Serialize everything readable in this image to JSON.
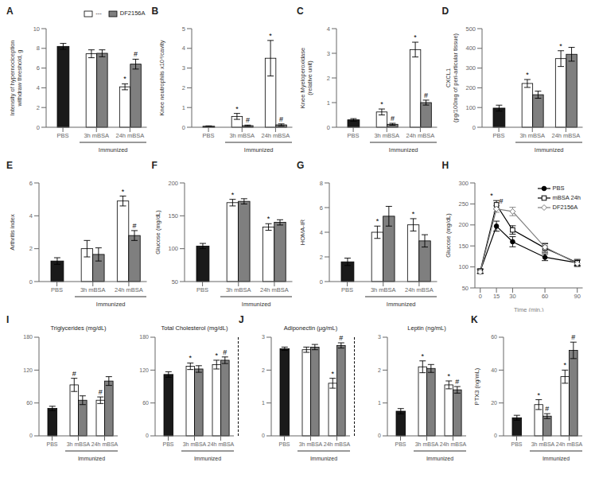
{
  "chart_data": [
    {
      "type": "bar",
      "label": "A",
      "ylabel": "Intensity of hypernociception\nwithdraw threshold, g",
      "categories": [
        "PBS",
        "3h mBSA",
        "24h mBSA"
      ],
      "series": [
        {
          "name": "---",
          "colors": [
            "#1a1a1a",
            "#ffffff",
            "#ffffff"
          ],
          "values": [
            8.2,
            7.45,
            4.1
          ],
          "errors": [
            0.3,
            0.4,
            0.3
          ],
          "annotations": [
            null,
            null,
            "*"
          ]
        },
        {
          "name": "DF2156A",
          "color": "#7f7f7f",
          "values": [
            null,
            7.5,
            6.4
          ],
          "errors": [
            null,
            0.35,
            0.5
          ],
          "annotations": [
            null,
            null,
            "#"
          ]
        }
      ],
      "ylim": [
        0,
        10
      ],
      "yticks": [
        0,
        2,
        4,
        6,
        8,
        10
      ],
      "legend": "upper right",
      "annotation": "Immunized"
    },
    {
      "type": "bar",
      "label": "B",
      "ylabel": "Knee neutrophils x10⁴/cavity",
      "categories": [
        "PBS",
        "3h mBSA",
        "24h mBSA"
      ],
      "series": [
        {
          "colors": [
            "#1a1a1a",
            "#ffffff",
            "#ffffff"
          ],
          "values": [
            0.05,
            0.55,
            3.5
          ],
          "errors": [
            0.02,
            0.15,
            0.9
          ],
          "annotations": [
            null,
            "*",
            "*"
          ]
        },
        {
          "color": "#7f7f7f",
          "values": [
            null,
            0.08,
            0.12
          ],
          "errors": [
            null,
            0.03,
            0.05
          ],
          "annotations": [
            null,
            "#",
            "#"
          ]
        }
      ],
      "ylim": [
        0,
        5
      ],
      "yticks": [
        0,
        1,
        2,
        3,
        4,
        5
      ],
      "annotation": "Immunized"
    },
    {
      "type": "bar",
      "label": "C",
      "ylabel": "Knee Myeloperoxidase\n(relative unit)",
      "categories": [
        "PBS",
        "3h mBSA",
        "24h mBSA"
      ],
      "series": [
        {
          "colors": [
            "#1a1a1a",
            "#ffffff",
            "#ffffff"
          ],
          "values": [
            0.3,
            0.62,
            3.15
          ],
          "errors": [
            0.05,
            0.12,
            0.3
          ],
          "annotations": [
            null,
            "*",
            "*"
          ]
        },
        {
          "color": "#7f7f7f",
          "values": [
            null,
            0.12,
            1.0
          ],
          "errors": [
            null,
            0.04,
            0.1
          ],
          "annotations": [
            null,
            "#",
            "#"
          ]
        }
      ],
      "ylim": [
        0,
        4
      ],
      "yticks": [
        0,
        1,
        2,
        3,
        4
      ],
      "annotation": "Immunized"
    },
    {
      "type": "bar",
      "label": "D",
      "ylabel": "CXCL1\n(pg/100mg of peri-articular tissue)",
      "categories": [
        "PBS",
        "3h mBSA",
        "24h mBSA"
      ],
      "series": [
        {
          "colors": [
            "#1a1a1a",
            "#ffffff",
            "#ffffff"
          ],
          "values": [
            97,
            222,
            348
          ],
          "errors": [
            15,
            20,
            40
          ],
          "annotations": [
            null,
            "*",
            "*"
          ]
        },
        {
          "color": "#7f7f7f",
          "values": [
            null,
            165,
            370
          ],
          "errors": [
            null,
            18,
            35
          ]
        }
      ],
      "ylim": [
        0,
        500
      ],
      "yticks": [
        0,
        100,
        200,
        300,
        400,
        500
      ],
      "annotation": "Immunized"
    },
    {
      "type": "bar",
      "label": "E",
      "ylabel": "Arthritis index",
      "categories": [
        "PBS",
        "3h mBSA",
        "24h mBSA"
      ],
      "series": [
        {
          "colors": [
            "#1a1a1a",
            "#ffffff",
            "#ffffff"
          ],
          "values": [
            1.25,
            2.0,
            4.9
          ],
          "errors": [
            0.2,
            0.5,
            0.3
          ],
          "annotations": [
            null,
            null,
            "*"
          ]
        },
        {
          "color": "#7f7f7f",
          "values": [
            null,
            1.65,
            2.8
          ],
          "errors": [
            null,
            0.4,
            0.3
          ],
          "annotations": [
            null,
            null,
            "#"
          ]
        }
      ],
      "ylim": [
        0,
        6
      ],
      "yticks": [
        0,
        2,
        4,
        6
      ],
      "annotation": "Immunized"
    },
    {
      "type": "bar",
      "label": "F",
      "ylabel": "Glucose (mg/dL)",
      "categories": [
        "PBS",
        "3h mBSA",
        "24h mBSA"
      ],
      "series": [
        {
          "colors": [
            "#1a1a1a",
            "#ffffff",
            "#ffffff"
          ],
          "values": [
            104,
            170,
            133
          ],
          "errors": [
            4,
            5,
            5
          ],
          "annotations": [
            null,
            "*",
            "*"
          ]
        },
        {
          "color": "#7f7f7f",
          "values": [
            null,
            172,
            140
          ],
          "errors": [
            null,
            4,
            4
          ]
        }
      ],
      "ylim": [
        50,
        200
      ],
      "yticks": [
        50,
        100,
        150,
        200
      ],
      "annotation": "Immunized"
    },
    {
      "type": "bar",
      "label": "G",
      "ylabel": "HOMA-IR",
      "categories": [
        "PBS",
        "3h mBSA",
        "24h mBSA"
      ],
      "series": [
        {
          "colors": [
            "#1a1a1a",
            "#ffffff",
            "#ffffff"
          ],
          "values": [
            1.6,
            4.0,
            4.6
          ],
          "errors": [
            0.3,
            0.5,
            0.5
          ],
          "annotations": [
            null,
            "*",
            "*"
          ]
        },
        {
          "color": "#7f7f7f",
          "values": [
            null,
            5.3,
            3.3
          ],
          "errors": [
            null,
            0.8,
            0.5
          ]
        }
      ],
      "ylim": [
        0,
        8
      ],
      "yticks": [
        0,
        2,
        4,
        6,
        8
      ],
      "annotation": "Immunized"
    },
    {
      "type": "line",
      "label": "H",
      "xlabel": "Time (min.)",
      "ylabel": "Glucose (mg/dL)",
      "x": [
        0,
        15,
        30,
        60,
        90
      ],
      "xlim": [
        -5,
        95
      ],
      "xticks": [
        0,
        15,
        30,
        60,
        90
      ],
      "ylim": [
        50,
        300
      ],
      "yticks": [
        50,
        100,
        150,
        200,
        250,
        300
      ],
      "legend": "upper right",
      "series": [
        {
          "name": "PBS",
          "color": "#000000",
          "marker": "circle",
          "values": [
            90,
            197,
            160,
            123,
            110
          ],
          "errors": [
            5,
            12,
            12,
            8,
            6
          ]
        },
        {
          "name": "mBSA 24h",
          "color": "#000000",
          "marker": "open-square",
          "values": [
            90,
            248,
            188,
            145,
            110
          ],
          "errors": [
            5,
            10,
            10,
            10,
            8
          ],
          "annotations": [
            null,
            "*",
            null,
            null,
            null
          ]
        },
        {
          "name": "DF2156A",
          "color": "#7f7f7f",
          "marker": "open-diamond",
          "values": [
            88,
            238,
            232,
            147,
            108
          ],
          "errors": [
            5,
            8,
            10,
            10,
            8
          ],
          "annotations": [
            null,
            "#",
            null,
            null,
            null
          ]
        }
      ]
    },
    {
      "type": "bar",
      "label": "I",
      "title": "Triglycerides (mg/dL)",
      "categories": [
        "PBS",
        "3h mBSA",
        "24h mBSA"
      ],
      "series": [
        {
          "colors": [
            "#1a1a1a",
            "#ffffff",
            "#ffffff"
          ],
          "values": [
            50,
            93,
            65
          ],
          "errors": [
            4,
            12,
            6
          ],
          "annotations": [
            null,
            "#",
            "#"
          ]
        },
        {
          "color": "#7f7f7f",
          "values": [
            null,
            65,
            100
          ],
          "errors": [
            null,
            8,
            8
          ]
        }
      ],
      "ylim": [
        0,
        180
      ],
      "yticks": [
        0,
        60,
        120,
        180
      ],
      "annotation": "Immunized"
    },
    {
      "type": "bar",
      "title": "Total Cholesterol (mg/dL)",
      "categories": [
        "PBS",
        "3h mBSA",
        "24h mBSA"
      ],
      "series": [
        {
          "colors": [
            "#1a1a1a",
            "#ffffff",
            "#ffffff"
          ],
          "values": [
            112,
            127,
            130
          ],
          "errors": [
            5,
            6,
            8
          ],
          "annotations": [
            null,
            "*",
            "*"
          ]
        },
        {
          "color": "#7f7f7f",
          "values": [
            null,
            122,
            138
          ],
          "errors": [
            null,
            6,
            6
          ],
          "annotations": [
            null,
            null,
            "#"
          ]
        }
      ],
      "ylim": [
        0,
        180
      ],
      "yticks": [
        0,
        60,
        120,
        180
      ],
      "annotation": "Immunized"
    },
    {
      "type": "bar",
      "label": "J",
      "title": "Adiponectin (µg/mL)",
      "categories": [
        "PBS",
        "3h mBSA",
        "24h mBSA"
      ],
      "series": [
        {
          "colors": [
            "#1a1a1a",
            "#ffffff",
            "#ffffff"
          ],
          "values": [
            2.65,
            2.62,
            1.6
          ],
          "errors": [
            0.05,
            0.08,
            0.15
          ],
          "annotations": [
            null,
            null,
            "*"
          ]
        },
        {
          "color": "#7f7f7f",
          "values": [
            null,
            2.7,
            2.75
          ],
          "errors": [
            null,
            0.08,
            0.08
          ],
          "annotations": [
            null,
            null,
            "#"
          ]
        }
      ],
      "ylim": [
        0,
        3
      ],
      "yticks": [
        0,
        1,
        2,
        3
      ],
      "annotation": "Immunized"
    },
    {
      "type": "bar",
      "title": "Leptin (ng/mL)",
      "categories": [
        "PBS",
        "3h mBSA",
        "24h mBSA"
      ],
      "series": [
        {
          "colors": [
            "#1a1a1a",
            "#ffffff",
            "#ffffff"
          ],
          "values": [
            0.75,
            2.1,
            1.55
          ],
          "errors": [
            0.08,
            0.18,
            0.12
          ],
          "annotations": [
            null,
            "*",
            "*"
          ]
        },
        {
          "color": "#7f7f7f",
          "values": [
            null,
            2.05,
            1.4
          ],
          "errors": [
            null,
            0.12,
            0.1
          ],
          "annotations": [
            null,
            null,
            "#"
          ]
        }
      ],
      "ylim": [
        0,
        3
      ],
      "yticks": [
        0,
        1,
        2,
        3
      ],
      "annotation": "Immunized"
    },
    {
      "type": "bar",
      "label": "K",
      "ylabel": "PTX3 (ng/mL)",
      "categories": [
        "PBS",
        "3h mBSA",
        "24h mBSA"
      ],
      "series": [
        {
          "colors": [
            "#1a1a1a",
            "#ffffff",
            "#ffffff"
          ],
          "values": [
            11,
            19,
            36
          ],
          "errors": [
            1.5,
            3,
            4
          ],
          "annotations": [
            null,
            "*",
            "*"
          ]
        },
        {
          "color": "#7f7f7f",
          "values": [
            null,
            12,
            52
          ],
          "errors": [
            null,
            1.5,
            5
          ],
          "annotations": [
            null,
            "#",
            "#"
          ]
        }
      ],
      "ylim": [
        0,
        60
      ],
      "yticks": [
        0,
        20,
        40,
        60
      ],
      "annotation": "Immunized"
    }
  ]
}
